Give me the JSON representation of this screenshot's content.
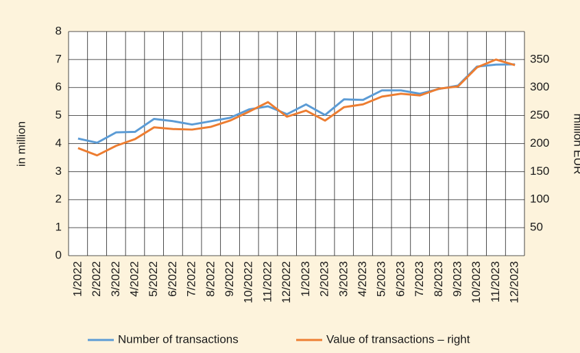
{
  "chart_data": {
    "type": "line",
    "categories": [
      "1/2022",
      "2/2022",
      "3/2022",
      "4/2022",
      "5/2022",
      "6/2022",
      "7/2022",
      "8/2022",
      "9/2022",
      "10/2022",
      "11/2022",
      "12/2022",
      "1/2023",
      "2/2023",
      "3/2023",
      "4/2023",
      "5/2023",
      "6/2023",
      "7/2023",
      "8/2023",
      "9/2023",
      "10/2023",
      "11/2023",
      "12/2023"
    ],
    "series": [
      {
        "name": "Number of transactions",
        "color": "#5b9bd5",
        "values": [
          4.18,
          4.03,
          4.4,
          4.42,
          4.88,
          4.8,
          4.68,
          4.8,
          4.92,
          5.22,
          5.33,
          5.05,
          5.4,
          5.02,
          5.58,
          5.56,
          5.9,
          5.9,
          5.78,
          5.95,
          6.07,
          6.75,
          6.82,
          6.83
        ]
      },
      {
        "name": "Value of transactions – right",
        "color": "#ed7d31",
        "axis": "y2",
        "values": [
          192,
          179,
          196,
          208,
          229,
          226,
          225,
          230,
          241,
          257,
          274,
          248,
          259,
          241,
          265,
          270,
          284,
          289,
          286,
          298,
          302,
          336,
          350,
          340
        ]
      }
    ],
    "ylabel": "in million",
    "y2label": "million EUR",
    "ylim": [
      0,
      8
    ],
    "yticks": [
      0,
      1,
      2,
      3,
      4,
      5,
      6,
      7,
      8
    ],
    "y2lim": [
      0,
      400
    ],
    "y2ticks": [
      50,
      100,
      150,
      200,
      250,
      300,
      350
    ],
    "grid": true,
    "legend": "bottom"
  }
}
